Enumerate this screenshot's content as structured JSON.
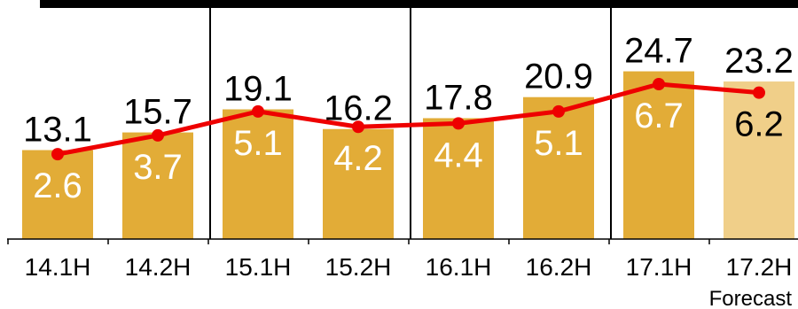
{
  "chart_data": {
    "type": "bar",
    "categories": [
      "14.1H",
      "14.2H",
      "15.1H",
      "15.2H",
      "16.1H",
      "16.2H",
      "17.1H",
      "17.2H"
    ],
    "series": [
      {
        "values": [
          13.1,
          15.7,
          19.1,
          16.2,
          17.8,
          20.9,
          24.7,
          23.2
        ]
      },
      {
        "type": "line",
        "values": [
          2.6,
          3.7,
          5.1,
          4.2,
          4.4,
          5.1,
          6.7,
          6.2
        ]
      }
    ],
    "bar_forecast_index": 7,
    "annotation": "Forecast",
    "colors": {
      "bar": "#E2AC37",
      "bar_forecast": "#F0CF89",
      "line": "#EE0000",
      "inner_label": "#ffffff",
      "inner_label_forecast": "#000000",
      "top_band": "#000000"
    },
    "xlabel": "",
    "ylabel": "",
    "ylim": [
      0,
      26
    ],
    "line_ylim": [
      -1.9,
      8.8
    ]
  }
}
